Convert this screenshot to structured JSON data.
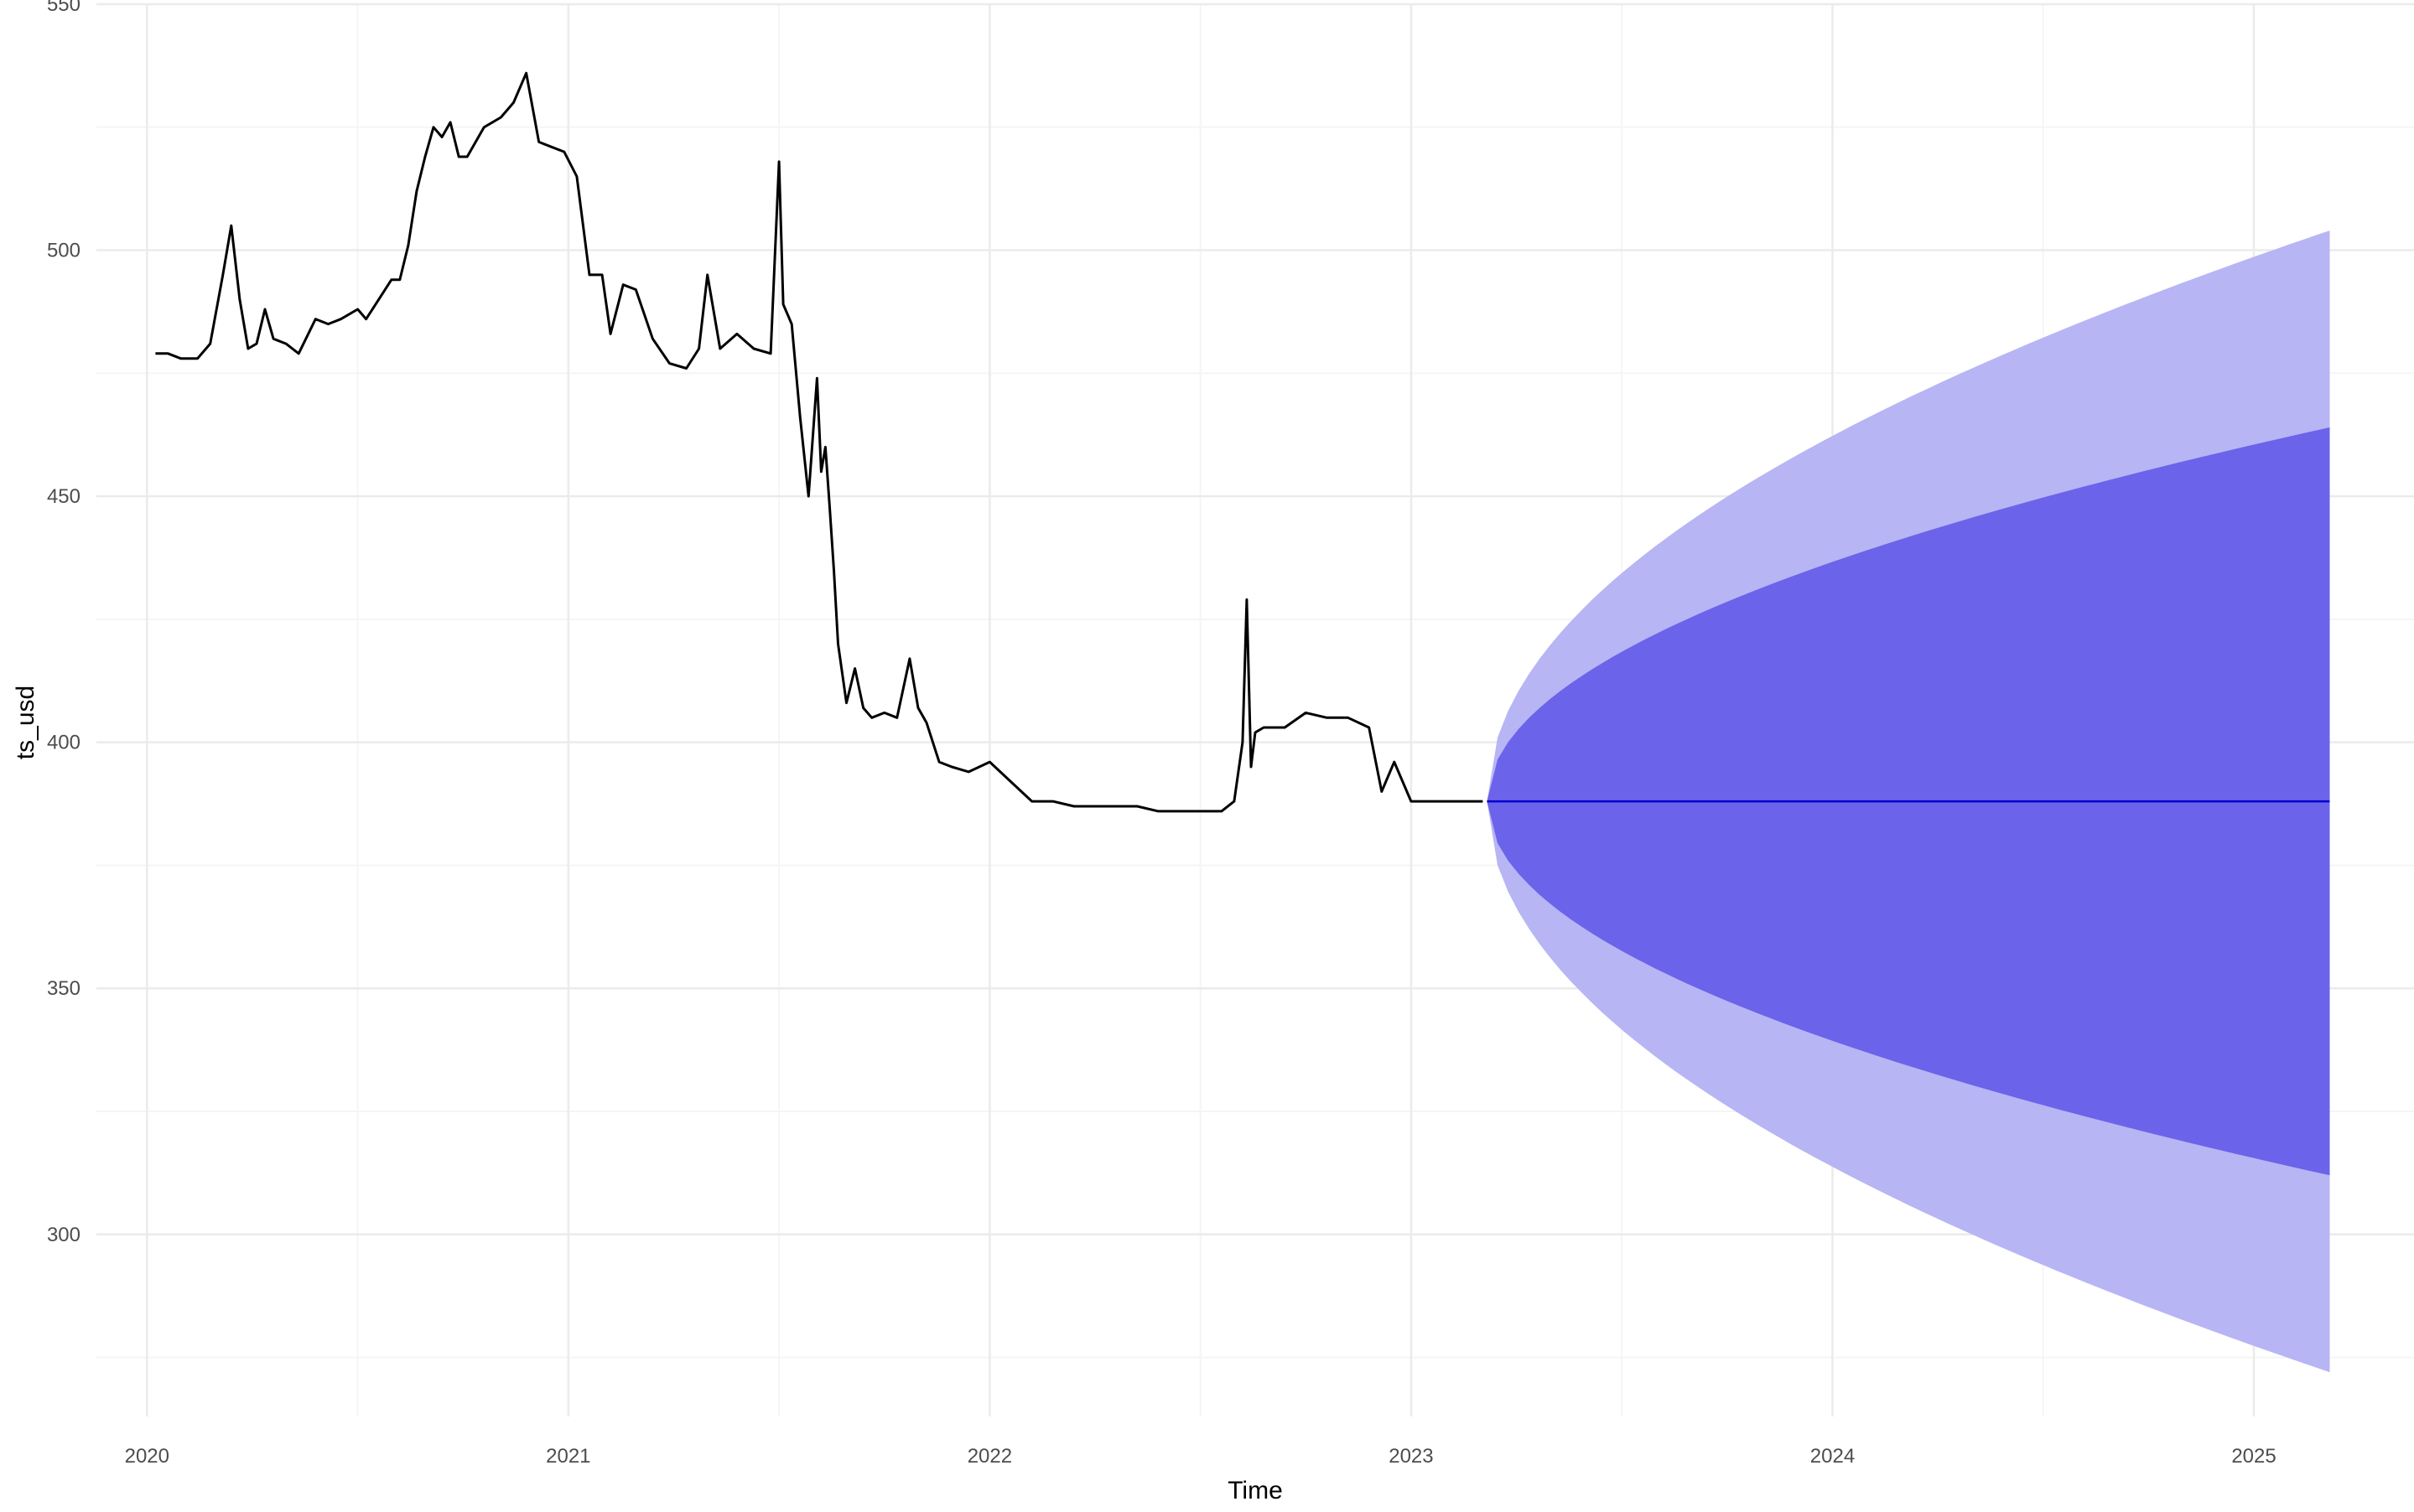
{
  "chart_data": {
    "type": "line",
    "title": "",
    "xlabel": "Time",
    "ylabel": "ts_usd",
    "xlim": [
      2019.88,
      2025.38
    ],
    "ylim": [
      263,
      550
    ],
    "x_ticks": [
      2020,
      2021,
      2022,
      2023,
      2024,
      2025
    ],
    "x_tick_labels": [
      "2020",
      "2021",
      "2022",
      "2023",
      "2024",
      "2025"
    ],
    "y_ticks": [
      300,
      350,
      400,
      450,
      500,
      550
    ],
    "y_tick_labels": [
      "300",
      "350",
      "400",
      "450",
      "500",
      "550"
    ],
    "grid": true,
    "legend": "none",
    "colors": {
      "history": "#000000",
      "forecast_mean": "#0000cc",
      "band_80": "#6b63ea",
      "band_95": "#b7b5f4",
      "grid_major": "#ebebeb",
      "grid_minor": "#f5f5f5"
    },
    "series": [
      {
        "kind": "history",
        "x": [
          2020.02,
          2020.05,
          2020.08,
          2020.12,
          2020.15,
          2020.18,
          2020.2,
          2020.22,
          2020.24,
          2020.26,
          2020.28,
          2020.3,
          2020.33,
          2020.36,
          2020.4,
          2020.43,
          2020.46,
          2020.5,
          2020.52,
          2020.55,
          2020.58,
          2020.6,
          2020.62,
          2020.64,
          2020.66,
          2020.68,
          2020.7,
          2020.72,
          2020.74,
          2020.76,
          2020.8,
          2020.84,
          2020.87,
          2020.9,
          2020.93,
          2020.96,
          2020.99,
          2021.02,
          2021.05,
          2021.08,
          2021.1,
          2021.13,
          2021.16,
          2021.2,
          2021.24,
          2021.28,
          2021.31,
          2021.33,
          2021.36,
          2021.4,
          2021.44,
          2021.48,
          2021.5,
          2021.51,
          2021.53,
          2021.55,
          2021.57,
          2021.59,
          2021.6,
          2021.61,
          2021.62,
          2021.63,
          2021.64,
          2021.66,
          2021.68,
          2021.7,
          2021.72,
          2021.75,
          2021.78,
          2021.81,
          2021.83,
          2021.85,
          2021.88,
          2021.91,
          2021.95,
          2022.0,
          2022.05,
          2022.1,
          2022.15,
          2022.2,
          2022.25,
          2022.3,
          2022.35,
          2022.4,
          2022.45,
          2022.5,
          2022.55,
          2022.58,
          2022.6,
          2022.61,
          2022.62,
          2022.63,
          2022.65,
          2022.7,
          2022.75,
          2022.8,
          2022.85,
          2022.9,
          2022.93,
          2022.96,
          2023.0,
          2023.05,
          2023.1,
          2023.17
        ],
        "y": [
          479,
          479,
          478,
          478,
          481,
          495,
          505,
          490,
          480,
          481,
          488,
          482,
          481,
          479,
          486,
          485,
          486,
          488,
          486,
          490,
          494,
          494,
          501,
          512,
          519,
          525,
          523,
          526,
          519,
          519,
          525,
          527,
          530,
          536,
          522,
          521,
          520,
          515,
          495,
          495,
          483,
          493,
          492,
          482,
          477,
          476,
          480,
          495,
          480,
          483,
          480,
          479,
          518,
          489,
          485,
          466,
          450,
          474,
          455,
          460,
          448,
          435,
          420,
          408,
          415,
          407,
          405,
          406,
          405,
          417,
          407,
          404,
          396,
          395,
          394,
          396,
          392,
          388,
          388,
          387,
          387,
          387,
          387,
          386,
          386,
          386,
          386,
          388,
          400,
          429,
          395,
          402,
          403,
          403,
          406,
          405,
          405,
          403,
          390,
          396,
          388,
          388,
          388,
          388
        ]
      },
      {
        "kind": "forecast_mean",
        "x": [
          2023.18,
          2025.18
        ],
        "y": [
          388,
          388
        ]
      }
    ],
    "forecast_bands": {
      "start": 2023.18,
      "end": 2025.18,
      "center": 388,
      "upper_95_end": 504,
      "lower_95_end": 272,
      "upper_80_end": 464,
      "lower_80_end": 312
    }
  }
}
